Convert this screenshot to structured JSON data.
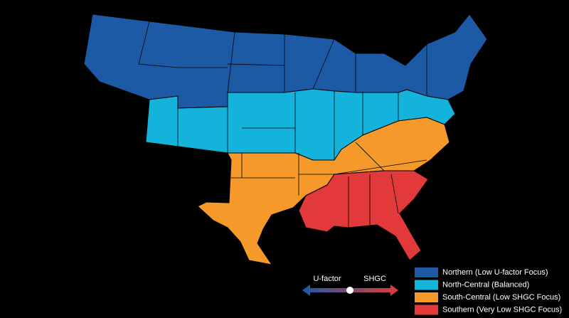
{
  "legend": {
    "items": [
      {
        "label": "Northern (Low U-factor Focus)",
        "color": "#1c5aa5"
      },
      {
        "label": "North-Central (Balanced)",
        "color": "#13b3db"
      },
      {
        "label": "South-Central (Low SHGC Focus)",
        "color": "#f5992a"
      },
      {
        "label": "Southern (Very Low SHGC Focus)",
        "color": "#e2393a"
      }
    ]
  },
  "slider": {
    "left_label": "U-factor",
    "right_label": "SHGC"
  }
}
